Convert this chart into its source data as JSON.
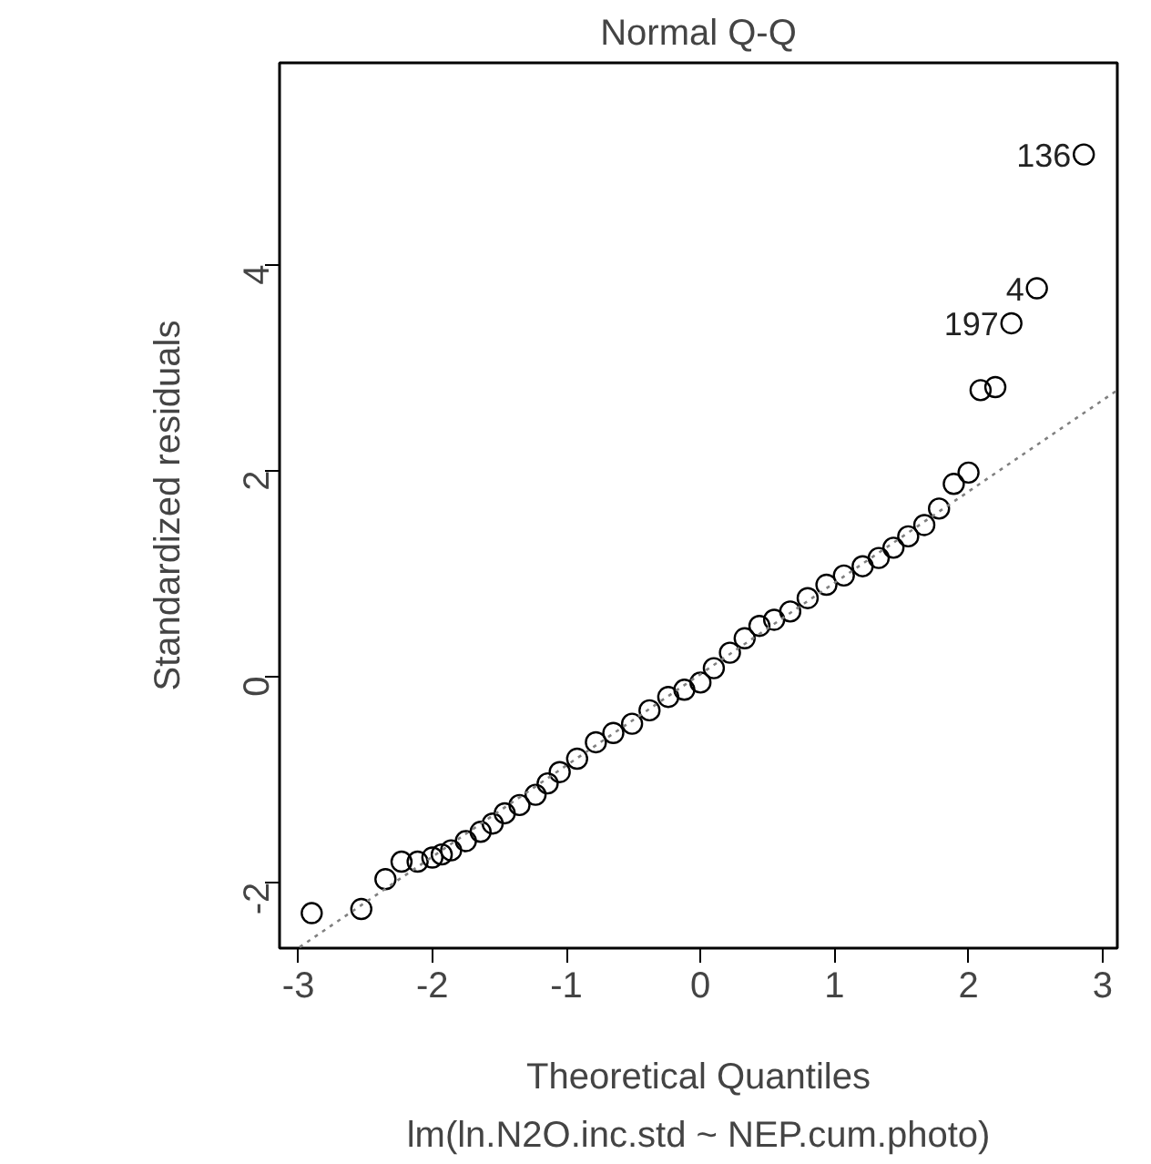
{
  "chart_data": {
    "type": "scatter",
    "title": "Normal Q-Q",
    "subtitle": "lm(ln.N2O.inc.std ~ NEP.cum.photo)",
    "xlabel": "Theoretical Quantiles",
    "ylabel": "Standardized residuals",
    "xlim": [
      -3.14,
      3.11
    ],
    "ylim": [
      -2.64,
      5.96
    ],
    "xticks": [
      -3,
      -2,
      -1,
      0,
      1,
      2,
      3
    ],
    "yticks": [
      -2,
      0,
      2,
      4
    ],
    "grid": false,
    "series": [
      {
        "marker": "circle",
        "color": "#000000",
        "x": [
          -2.9,
          -2.53,
          -2.35,
          -2.23,
          -2.11,
          -2.0,
          -1.93,
          -1.86,
          -1.75,
          -1.64,
          -1.55,
          -1.46,
          -1.35,
          -1.23,
          -1.14,
          -1.05,
          -0.92,
          -0.78,
          -0.65,
          -0.51,
          -0.38,
          -0.24,
          -0.12,
          0.0,
          0.1,
          0.22,
          0.33,
          0.44,
          0.55,
          0.67,
          0.8,
          0.94,
          1.07,
          1.21,
          1.33,
          1.44,
          1.55,
          1.67,
          1.78,
          1.89,
          2.0,
          2.09,
          2.2,
          2.32,
          2.51,
          2.86
        ],
        "values": [
          -2.3,
          -2.26,
          -1.97,
          -1.8,
          -1.8,
          -1.76,
          -1.73,
          -1.69,
          -1.6,
          -1.51,
          -1.43,
          -1.33,
          -1.25,
          -1.15,
          -1.04,
          -0.93,
          -0.8,
          -0.64,
          -0.55,
          -0.46,
          -0.33,
          -0.2,
          -0.13,
          -0.06,
          0.08,
          0.23,
          0.37,
          0.49,
          0.55,
          0.63,
          0.76,
          0.89,
          0.98,
          1.07,
          1.15,
          1.25,
          1.36,
          1.47,
          1.63,
          1.87,
          1.98,
          2.78,
          2.81,
          3.43,
          3.77,
          5.07
        ]
      },
      {
        "type": "line",
        "color": "#808080",
        "line_style": "dotted",
        "x": [
          -2.99,
          3.11
        ],
        "values": [
          -2.63,
          2.78
        ]
      }
    ],
    "annotations": [
      {
        "text": "136",
        "x": 2.86,
        "y": 5.07
      },
      {
        "text": "4",
        "x": 2.51,
        "y": 3.77
      },
      {
        "text": "197",
        "x": 2.32,
        "y": 3.43
      }
    ]
  }
}
